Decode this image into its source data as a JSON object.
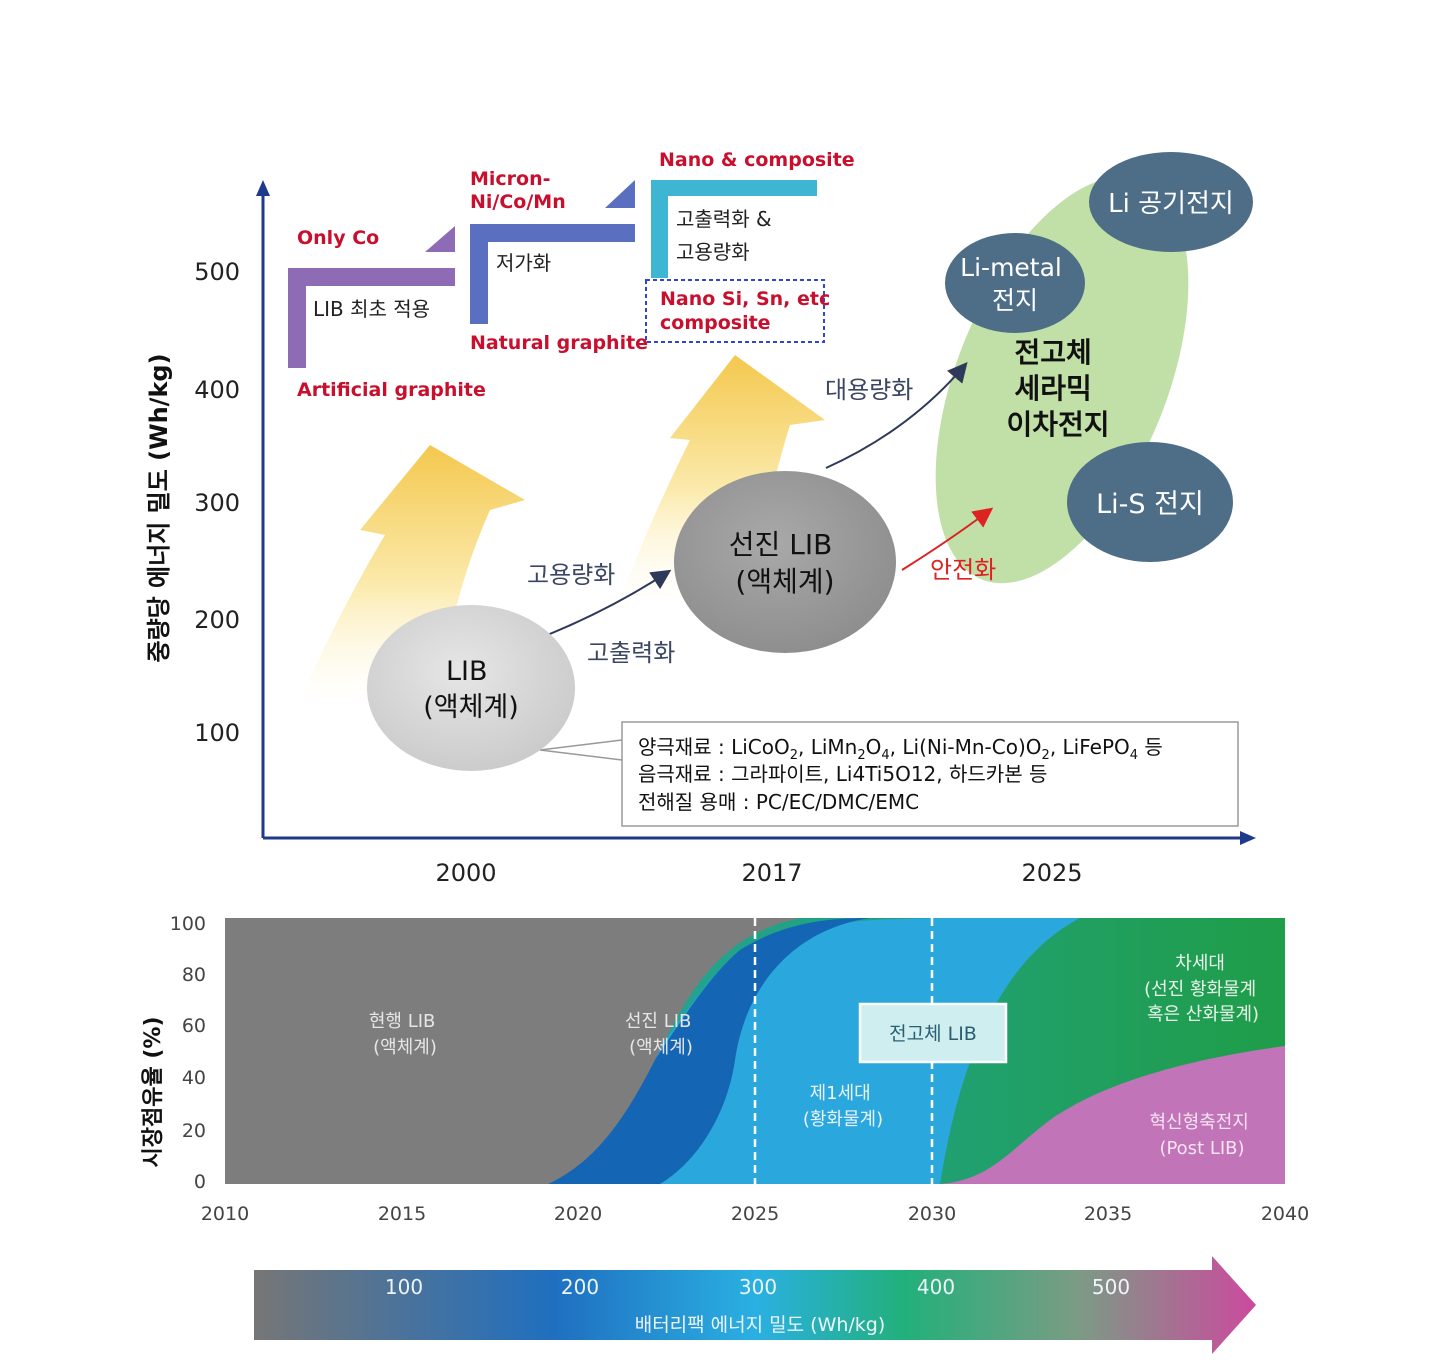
{
  "top": {
    "y_axis_label": "중량당 에너지 밀도 (Wh/kg)",
    "y_ticks": [
      "100",
      "200",
      "300",
      "400",
      "500"
    ],
    "x_ticks": [
      "2000",
      "2017",
      "2025"
    ],
    "steps": [
      {
        "top_label": "Only Co",
        "inner": "LIB 최초 적용",
        "bottom_label": "Artificial graphite"
      },
      {
        "top_label": [
          "Micron-",
          "Ni/Co/Mn"
        ],
        "inner": "저가화",
        "bottom_label": "Natural graphite"
      },
      {
        "top_label": "Nano & composite",
        "inner": [
          "고출력화 &",
          "고용량화"
        ],
        "bottom_label": [
          "Nano Si, Sn, etc",
          "composite"
        ]
      }
    ],
    "nodes": {
      "lib": [
        "LIB",
        "(액체계)"
      ],
      "advanced": [
        "선진 LIB",
        "(액체계)"
      ],
      "li_metal": [
        "Li-metal",
        "전지"
      ],
      "li_air": "Li 공기전지",
      "li_s": "Li-S 전지",
      "solid": [
        "전고체",
        "세라믹",
        "이차전지"
      ]
    },
    "arrow_labels": {
      "high_capacity": "고용량화",
      "high_power": "고출력화",
      "large_capacity": "대용량화",
      "safety": "안전화"
    },
    "materials_box": [
      {
        "label": "양극재료 : ",
        "parts": [
          [
            "LiCoO",
            ""
          ],
          [
            "2",
            "sub"
          ],
          [
            ", LiMn",
            ""
          ],
          [
            "2",
            "sub"
          ],
          [
            "O",
            ""
          ],
          [
            "4",
            "sub"
          ],
          [
            ", Li(Ni-Mn-Co)O",
            ""
          ],
          [
            "2",
            "sub"
          ],
          [
            ", LiFePO",
            ""
          ],
          [
            "4",
            "sub"
          ],
          [
            " 등",
            ""
          ]
        ]
      },
      {
        "label": "음극재료 : ",
        "parts": [
          [
            "그라파이트, Li4Ti5O12, 하드카본 등",
            ""
          ]
        ]
      },
      {
        "label": "전해질 용매 : ",
        "parts": [
          [
            "PC/EC/DMC/EMC",
            ""
          ]
        ]
      }
    ]
  },
  "bottom": {
    "y_axis_label": "시장점유율 (%)",
    "y_ticks": [
      "0",
      "20",
      "40",
      "60",
      "80",
      "100"
    ],
    "x_ticks": [
      "2010",
      "2015",
      "2020",
      "2025",
      "2030",
      "2035",
      "2040"
    ],
    "regions": {
      "current": [
        "현행 LIB",
        "(액체계)"
      ],
      "advanced": [
        "선진 LIB",
        "(액체계)"
      ],
      "gen1": [
        "제1세대",
        "(황화물계)"
      ],
      "solid_box": "전고체 LIB",
      "next": [
        "차세대",
        "(선진 황화물계",
        "혹은 산화물계)"
      ],
      "post": [
        "혁신형축전지",
        "(Post LIB)"
      ]
    },
    "colors": {
      "current": "#7d7d7d",
      "advanced": "#1565b5",
      "gen1": "#2aa7dd",
      "next": "#20a36a",
      "post": "#c274b8"
    }
  },
  "density_bar": {
    "ticks": [
      "100",
      "200",
      "300",
      "400",
      "500"
    ],
    "label": "배터리팩 에너지 밀도 (Wh/kg)"
  }
}
